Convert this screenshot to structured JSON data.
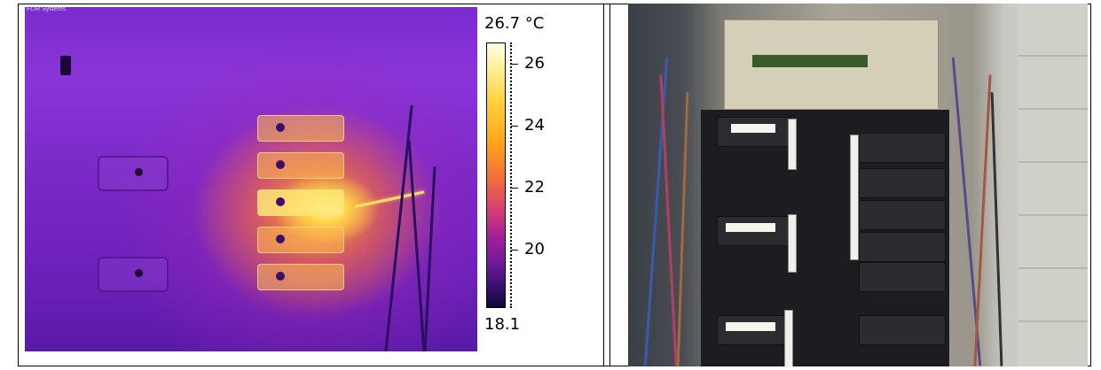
{
  "thermal": {
    "brand": "FLIR Systems",
    "unit_label": "26.7 °C",
    "max": 26.7,
    "min": 18.1,
    "min_label": "18.1",
    "ticks": [
      {
        "label": "26",
        "value": 26
      },
      {
        "label": "24",
        "value": 24
      },
      {
        "label": "22",
        "value": 22
      },
      {
        "label": "20",
        "value": 20
      }
    ],
    "palette": "iron",
    "colors": {
      "hot": "#ffffe8",
      "warm": "#ffa21a",
      "mid": "#d23c78",
      "cool": "#6a1a9a",
      "cold": "#0e0838"
    }
  },
  "photo": {
    "subject": "electrical-breaker-panel"
  }
}
